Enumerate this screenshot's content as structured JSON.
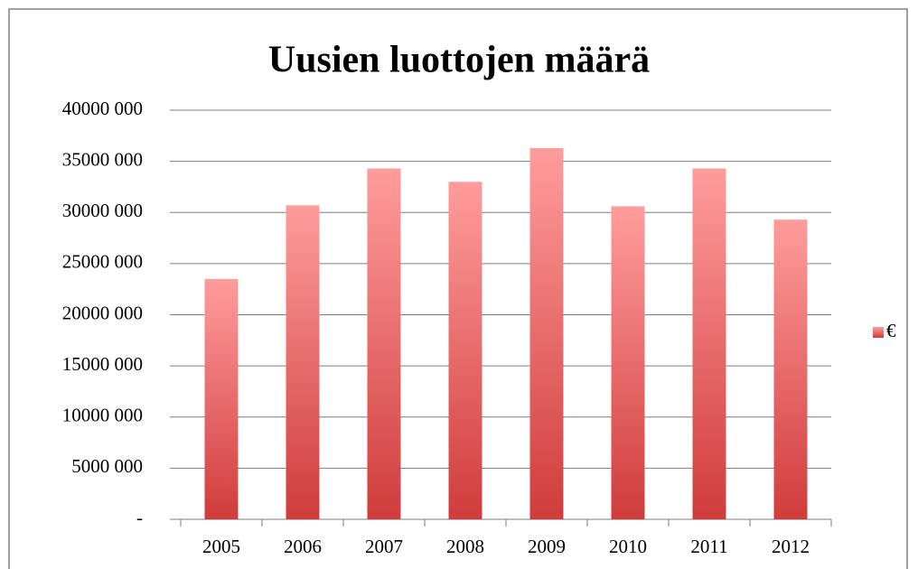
{
  "chart_data": {
    "type": "bar",
    "title": "Uusien luottojen määrä",
    "categories": [
      "2005",
      "2006",
      "2007",
      "2008",
      "2009",
      "2010",
      "2011",
      "2012"
    ],
    "series": [
      {
        "name": "€",
        "color": "#ff9c9c",
        "values": [
          23500000,
          30700000,
          34300000,
          33000000,
          36300000,
          30600000,
          34300000,
          29300000
        ]
      }
    ],
    "ylim": [
      0,
      40000000
    ],
    "yticks": [
      {
        "value": 0,
        "label": "-"
      },
      {
        "value": 5000000,
        "label": "5000 000"
      },
      {
        "value": 10000000,
        "label": "10000 000"
      },
      {
        "value": 15000000,
        "label": "15000 000"
      },
      {
        "value": 20000000,
        "label": "20000 000"
      },
      {
        "value": 25000000,
        "label": "25000 000"
      },
      {
        "value": 30000000,
        "label": "30000 000"
      },
      {
        "value": 35000000,
        "label": "35000 000"
      },
      {
        "value": 40000000,
        "label": "40000 000"
      }
    ],
    "grid": true,
    "legend": "right"
  }
}
